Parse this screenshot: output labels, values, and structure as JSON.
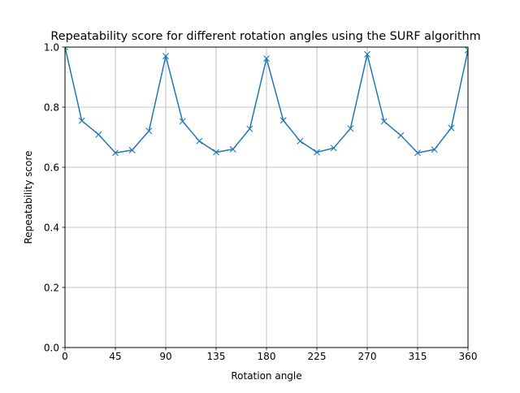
{
  "chart_data": {
    "type": "line",
    "title": "Repeatability score for different rotation angles using the SURF algorithm",
    "xlabel": "Rotation angle",
    "ylabel": "Repeatability score",
    "xlim": [
      0,
      360
    ],
    "ylim": [
      0.0,
      1.0
    ],
    "xticks": [
      0,
      45,
      90,
      135,
      180,
      225,
      270,
      315,
      360
    ],
    "yticks": [
      "0.0",
      "0.2",
      "0.4",
      "0.6",
      "0.8",
      "1.0"
    ],
    "grid": true,
    "marker": "x",
    "series": [
      {
        "color": "#1f77b4",
        "x": [
          0,
          15,
          30,
          45,
          60,
          75,
          90,
          105,
          120,
          135,
          150,
          165,
          180,
          195,
          210,
          225,
          240,
          255,
          270,
          285,
          300,
          315,
          330,
          345,
          360
        ],
        "y": [
          1.0,
          0.755,
          0.709,
          0.648,
          0.657,
          0.721,
          0.97,
          0.753,
          0.687,
          0.65,
          0.66,
          0.728,
          0.962,
          0.756,
          0.687,
          0.65,
          0.664,
          0.729,
          0.976,
          0.753,
          0.706,
          0.648,
          0.659,
          0.731,
          0.99
        ]
      }
    ]
  }
}
